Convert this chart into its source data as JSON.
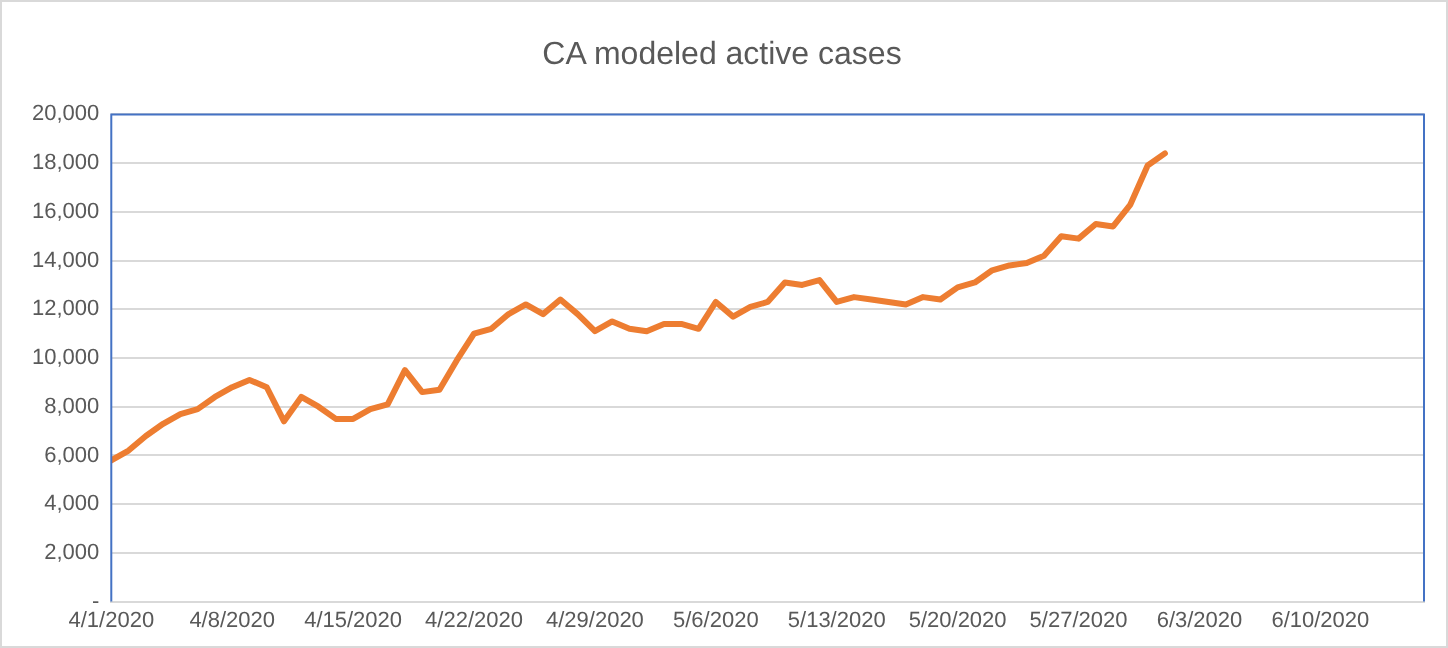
{
  "chart_data": {
    "type": "line",
    "title": "CA modeled active cases",
    "x": [
      "2020-04-01",
      "2020-04-02",
      "2020-04-03",
      "2020-04-04",
      "2020-04-05",
      "2020-04-06",
      "2020-04-07",
      "2020-04-08",
      "2020-04-09",
      "2020-04-10",
      "2020-04-11",
      "2020-04-12",
      "2020-04-13",
      "2020-04-14",
      "2020-04-15",
      "2020-04-16",
      "2020-04-17",
      "2020-04-18",
      "2020-04-19",
      "2020-04-20",
      "2020-04-21",
      "2020-04-22",
      "2020-04-23",
      "2020-04-24",
      "2020-04-25",
      "2020-04-26",
      "2020-04-27",
      "2020-04-28",
      "2020-04-29",
      "2020-04-30",
      "2020-05-01",
      "2020-05-02",
      "2020-05-03",
      "2020-05-04",
      "2020-05-05",
      "2020-05-06",
      "2020-05-07",
      "2020-05-08",
      "2020-05-09",
      "2020-05-10",
      "2020-05-11",
      "2020-05-12",
      "2020-05-13",
      "2020-05-14",
      "2020-05-15",
      "2020-05-16",
      "2020-05-17",
      "2020-05-18",
      "2020-05-19",
      "2020-05-20",
      "2020-05-21",
      "2020-05-22",
      "2020-05-23",
      "2020-05-24",
      "2020-05-25",
      "2020-05-26",
      "2020-05-27",
      "2020-05-28",
      "2020-05-29",
      "2020-05-30",
      "2020-05-31",
      "2020-06-01"
    ],
    "series": [
      {
        "color": "#ed7d31",
        "values": [
          5800,
          6200,
          6800,
          7300,
          7700,
          7900,
          8400,
          8800,
          9100,
          8800,
          7400,
          8400,
          8000,
          7500,
          7500,
          7900,
          8100,
          9500,
          8600,
          8700,
          9900,
          11000,
          11200,
          11800,
          12200,
          11800,
          12400,
          11800,
          11100,
          11500,
          11200,
          11100,
          11400,
          11400,
          11200,
          12300,
          11700,
          12100,
          12300,
          13100,
          13000,
          13200,
          12300,
          12500,
          12400,
          12300,
          12200,
          12500,
          12400,
          12900,
          13100,
          13600,
          13800,
          13900,
          14200,
          15000,
          14900,
          15500,
          15400,
          16300,
          17900,
          18400
        ]
      }
    ],
    "xlim": [
      "2020-04-01",
      "2020-06-16"
    ],
    "xticks": [
      {
        "value": "2020-04-01",
        "label": "4/1/2020"
      },
      {
        "value": "2020-04-08",
        "label": "4/8/2020"
      },
      {
        "value": "2020-04-15",
        "label": "4/15/2020"
      },
      {
        "value": "2020-04-22",
        "label": "4/22/2020"
      },
      {
        "value": "2020-04-29",
        "label": "4/29/2020"
      },
      {
        "value": "2020-05-06",
        "label": "5/6/2020"
      },
      {
        "value": "2020-05-13",
        "label": "5/13/2020"
      },
      {
        "value": "2020-05-20",
        "label": "5/20/2020"
      },
      {
        "value": "2020-05-27",
        "label": "5/27/2020"
      },
      {
        "value": "2020-06-03",
        "label": "6/3/2020"
      },
      {
        "value": "2020-06-10",
        "label": "6/10/2020"
      }
    ],
    "ylim": [
      0,
      20000
    ],
    "yticks": [
      {
        "value": 0,
        "label": "-"
      },
      {
        "value": 2000,
        "label": "2,000"
      },
      {
        "value": 4000,
        "label": "4,000"
      },
      {
        "value": 6000,
        "label": "6,000"
      },
      {
        "value": 8000,
        "label": "8,000"
      },
      {
        "value": 10000,
        "label": "10,000"
      },
      {
        "value": 12000,
        "label": "12,000"
      },
      {
        "value": 14000,
        "label": "14,000"
      },
      {
        "value": 16000,
        "label": "16,000"
      },
      {
        "value": 18000,
        "label": "18,000"
      },
      {
        "value": 20000,
        "label": "20,000"
      }
    ],
    "grid": "y",
    "legend": false,
    "marker": "none",
    "line_style": "solid"
  }
}
